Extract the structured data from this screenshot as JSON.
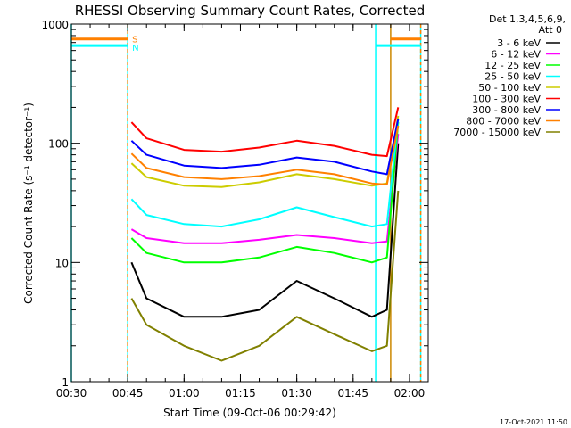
{
  "chart_data": {
    "type": "line",
    "title": "RHESSI Observing Summary Count Rates, Corrected",
    "xlabel": "Start Time (09-Oct-06 00:29:42)",
    "ylabel": "Corrected Count Rate (s⁻¹ detector⁻¹)",
    "y_scale": "log",
    "ylim": [
      1,
      1000
    ],
    "xlim": [
      "00:30",
      "02:05"
    ],
    "x_ticks": [
      "00:30",
      "00:45",
      "01:00",
      "01:15",
      "01:30",
      "01:45",
      "02:00"
    ],
    "y_ticks": [
      "1",
      "10",
      "100",
      "1000"
    ],
    "detector_info": [
      "Det 1,3,4,5,6,9,",
      "Att 0"
    ],
    "timestamp": "17-Oct-2021 11:50",
    "flag_labels": [
      "S",
      "N"
    ],
    "series": [
      {
        "name": "3 - 6 keV",
        "color": "#000000",
        "x": [
          "00:46",
          "00:50",
          "01:00",
          "01:10",
          "01:20",
          "01:30",
          "01:40",
          "01:50",
          "01:54",
          "01:57"
        ],
        "y": [
          10,
          5,
          3.5,
          3.5,
          4,
          7,
          5,
          3.5,
          4,
          100
        ]
      },
      {
        "name": "6 - 12 keV",
        "color": "#ff00ff",
        "x": [
          "00:46",
          "00:50",
          "01:00",
          "01:10",
          "01:20",
          "01:30",
          "01:40",
          "01:50",
          "01:54",
          "01:57"
        ],
        "y": [
          19,
          16,
          14.5,
          14.5,
          15.5,
          17,
          16,
          14.5,
          15,
          120
        ]
      },
      {
        "name": "12 - 25 keV",
        "color": "#00ff00",
        "x": [
          "00:46",
          "00:50",
          "01:00",
          "01:10",
          "01:20",
          "01:30",
          "01:40",
          "01:50",
          "01:54",
          "01:57"
        ],
        "y": [
          16,
          12,
          10,
          10,
          11,
          13.5,
          12,
          10,
          11,
          150
        ]
      },
      {
        "name": "25 - 50 keV",
        "color": "#00ffff",
        "x": [
          "00:46",
          "00:50",
          "01:00",
          "01:10",
          "01:20",
          "01:30",
          "01:40",
          "01:50",
          "01:54",
          "01:57"
        ],
        "y": [
          34,
          25,
          21,
          20,
          23,
          29,
          24,
          20,
          21,
          160
        ]
      },
      {
        "name": "50 - 100 keV",
        "color": "#cccc00",
        "x": [
          "00:46",
          "00:50",
          "01:00",
          "01:10",
          "01:20",
          "01:30",
          "01:40",
          "01:50",
          "01:54",
          "01:57"
        ],
        "y": [
          68,
          52,
          44,
          43,
          47,
          55,
          50,
          44,
          46,
          170
        ]
      },
      {
        "name": "100 - 300 keV",
        "color": "#ff0000",
        "x": [
          "00:46",
          "00:50",
          "01:00",
          "01:10",
          "01:20",
          "01:30",
          "01:40",
          "01:50",
          "01:54",
          "01:57"
        ],
        "y": [
          150,
          110,
          88,
          85,
          92,
          105,
          95,
          80,
          78,
          200
        ]
      },
      {
        "name": "300 - 800 keV",
        "color": "#0000ff",
        "x": [
          "00:46",
          "00:50",
          "01:00",
          "01:10",
          "01:20",
          "01:30",
          "01:40",
          "01:50",
          "01:54",
          "01:57"
        ],
        "y": [
          105,
          80,
          65,
          62,
          66,
          76,
          70,
          58,
          55,
          160
        ]
      },
      {
        "name": "800 - 7000 keV",
        "color": "#ff8000",
        "x": [
          "00:46",
          "00:50",
          "01:00",
          "01:10",
          "01:20",
          "01:30",
          "01:40",
          "01:50",
          "01:54",
          "01:57"
        ],
        "y": [
          82,
          62,
          52,
          50,
          53,
          60,
          55,
          46,
          45,
          140
        ]
      },
      {
        "name": "7000 - 15000 keV",
        "color": "#808000",
        "x": [
          "00:46",
          "00:50",
          "01:00",
          "01:10",
          "01:20",
          "01:30",
          "01:40",
          "01:50",
          "01:54",
          "01:57"
        ],
        "y": [
          5,
          3,
          2,
          1.5,
          2,
          3.5,
          2.5,
          1.8,
          2,
          40
        ]
      }
    ],
    "vertical_lines": [
      {
        "x": "00:30",
        "color": "#00ffff"
      },
      {
        "x": "00:45",
        "color": "#00ffff"
      },
      {
        "x": "00:45",
        "color": "#ff8000",
        "dashed": true
      },
      {
        "x": "01:51",
        "color": "#00ffff"
      },
      {
        "x": "01:55",
        "color": "#cc8800"
      },
      {
        "x": "02:03",
        "color": "#00ffff"
      },
      {
        "x": "02:03",
        "color": "#ff8000",
        "dashed": true
      }
    ],
    "flag_bars": [
      {
        "label": "S",
        "color": "#ff8000",
        "y": 750,
        "segments": [
          [
            "00:30",
            "00:45"
          ],
          [
            "01:55",
            "02:03"
          ]
        ]
      },
      {
        "label": "N",
        "color": "#00ffff",
        "y": 660,
        "segments": [
          [
            "00:30",
            "00:45"
          ],
          [
            "01:51",
            "02:03"
          ]
        ]
      }
    ]
  }
}
